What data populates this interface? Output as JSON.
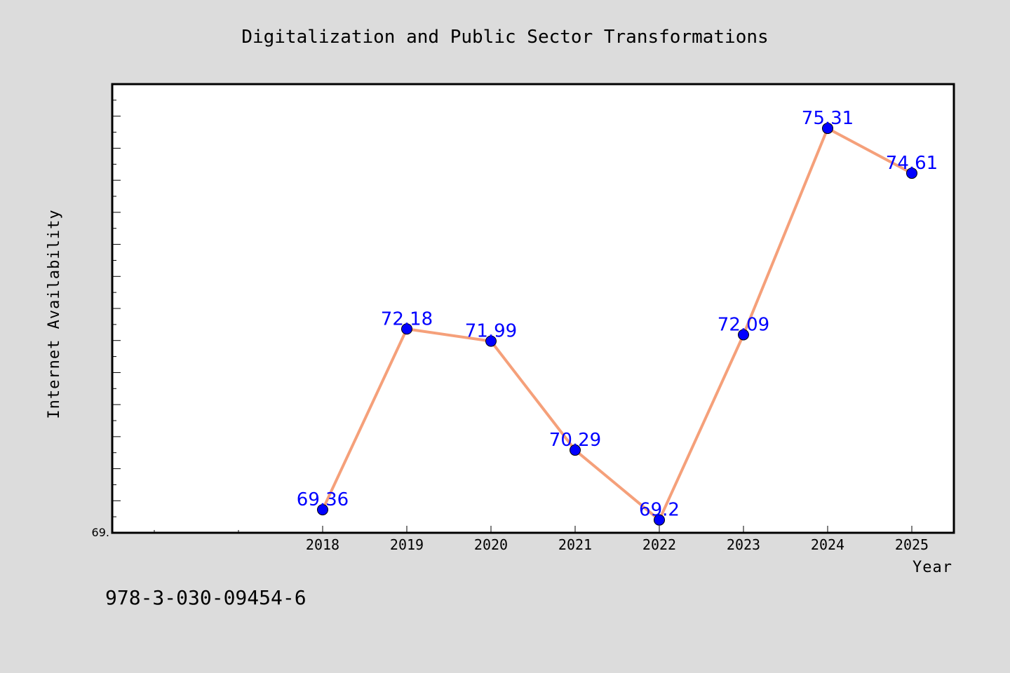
{
  "chart_data": {
    "type": "line",
    "title": "Digitalization and Public Sector Transformations",
    "xlabel": "Year",
    "ylabel": "Internet Availability",
    "categories": [
      "2018",
      "2019",
      "2020",
      "2021",
      "2022",
      "2023",
      "2024",
      "2025"
    ],
    "series": [
      {
        "values": [
          69.36,
          72.18,
          71.99,
          70.29,
          69.2,
          72.09,
          75.31,
          74.61
        ],
        "labels": [
          "69.36",
          "72.18",
          "71.99",
          "70.29",
          "69.2",
          "72.09",
          "75.31",
          "74.61"
        ],
        "line_color": "#f5a07a",
        "marker_color": "#0000ff"
      }
    ],
    "ylim": [
      69.0,
      76.0
    ],
    "ytick_labels": [
      "69."
    ],
    "grid": false,
    "label_color": "#0000ff"
  },
  "footer": {
    "isbn": "978-3-030-09454-6"
  },
  "colors": {
    "background": "#dcdcdc",
    "plot_background": "#ffffff",
    "axis": "#000000"
  }
}
